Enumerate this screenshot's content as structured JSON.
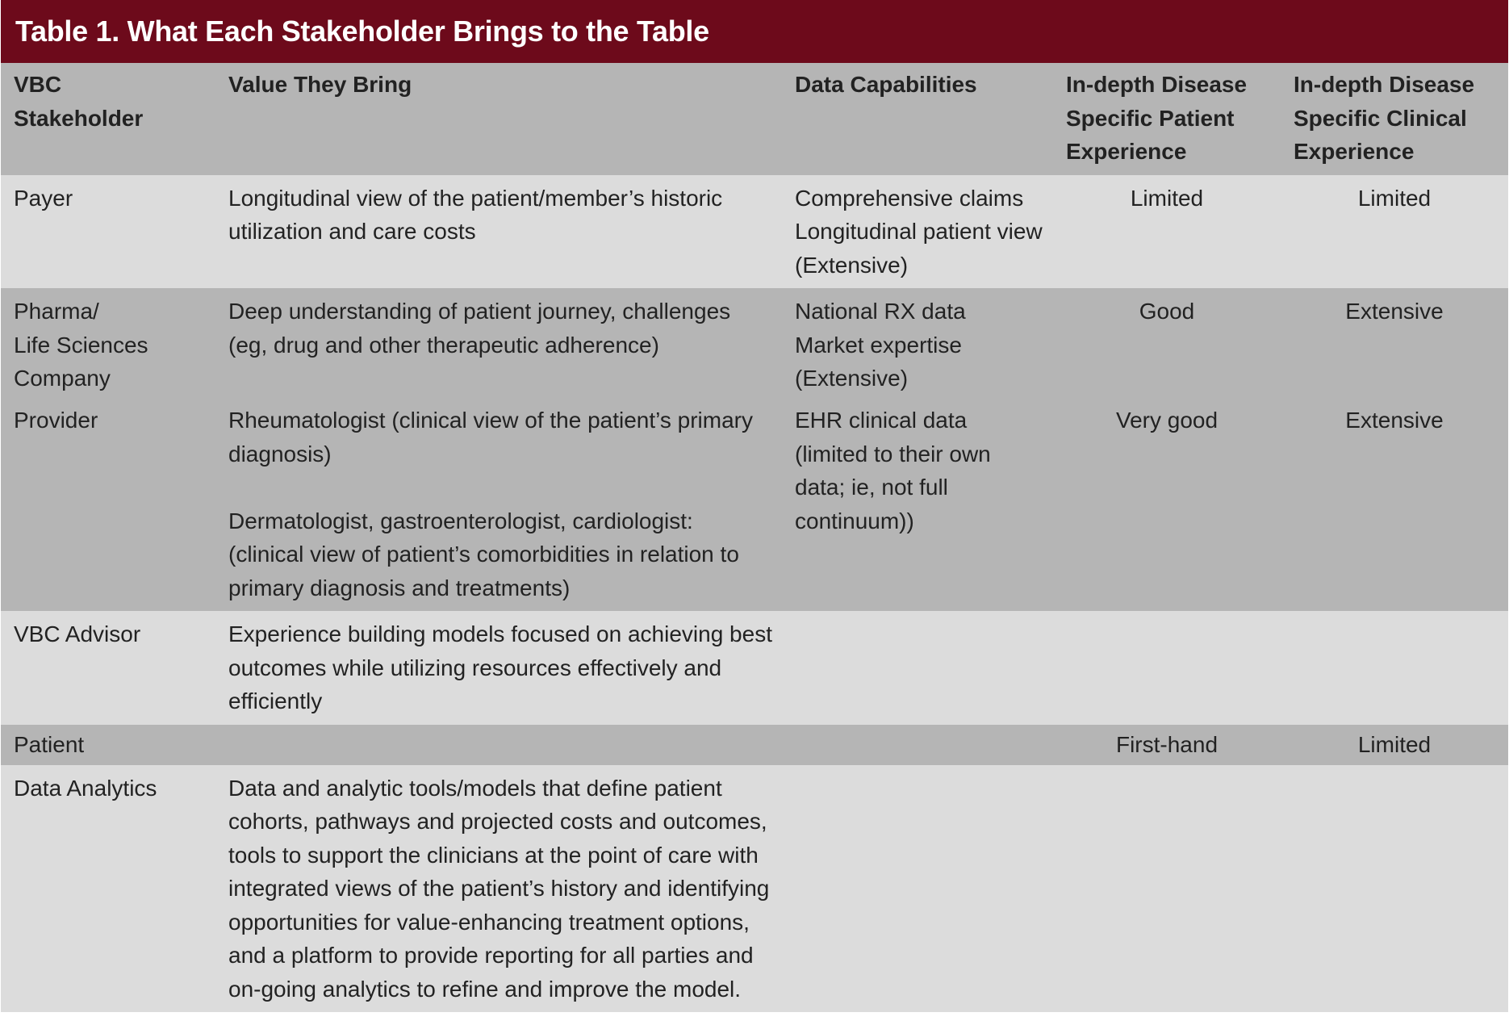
{
  "title": "Table 1. What Each Stakeholder Brings to the Table",
  "headers": {
    "stakeholder": [
      "VBC",
      "Stakeholder"
    ],
    "value": "Value They Bring",
    "data": "Data Capabilities",
    "patient_exp": [
      "In-depth Disease",
      "Specific Patient",
      "Experience"
    ],
    "clinical_exp": [
      "In-depth Disease",
      "Specific Clinical",
      "Experience"
    ]
  },
  "rows": [
    {
      "stakeholder": [
        "Payer"
      ],
      "value": [
        "Longitudinal view of the patient/member’s historic utilization and care costs"
      ],
      "data": [
        "Comprehensive claims",
        "Longitudinal patient view (Extensive)"
      ],
      "patient_exp": "Limited",
      "clinical_exp": "Limited"
    },
    {
      "stakeholder": [
        "Pharma/",
        "Life Sciences",
        "Company"
      ],
      "value": [
        "Deep understanding of patient journey, challenges (eg, drug and other therapeutic adherence)"
      ],
      "data": [
        "National RX data",
        "Market expertise (Extensive)"
      ],
      "patient_exp": "Good",
      "clinical_exp": "Extensive"
    },
    {
      "stakeholder": [
        "Provider"
      ],
      "value": [
        "Rheumatologist (clinical view of the patient’s primary diagnosis)",
        "Dermatologist, gastroenterologist, cardiologist: (clinical view of patient’s comorbidities in relation to primary diagnosis and treatments)"
      ],
      "data": [
        "EHR clinical data (limited to their own data; ie, not full continuum))"
      ],
      "patient_exp": "Very good",
      "clinical_exp": "Extensive"
    },
    {
      "stakeholder": [
        "VBC Advisor"
      ],
      "value": [
        "Experience building models focused on achieving best outcomes while utilizing resources effectively and efficiently"
      ],
      "data": [],
      "patient_exp": "",
      "clinical_exp": ""
    },
    {
      "stakeholder": [
        "Patient"
      ],
      "value": [],
      "data": [],
      "patient_exp": "First-hand",
      "clinical_exp": "Limited"
    },
    {
      "stakeholder": [
        "Data Analytics"
      ],
      "value": [
        "Data and analytic tools/models that define patient cohorts, pathways and projected costs and outcomes, tools to support the clinicians at the point of care with integrated views of the patient’s history and identifying opportunities for value-enhancing treatment options, and a platform to provide reporting for all parties and on-going analytics to refine and improve the model."
      ],
      "data": [],
      "patient_exp": "",
      "clinical_exp": ""
    }
  ]
}
